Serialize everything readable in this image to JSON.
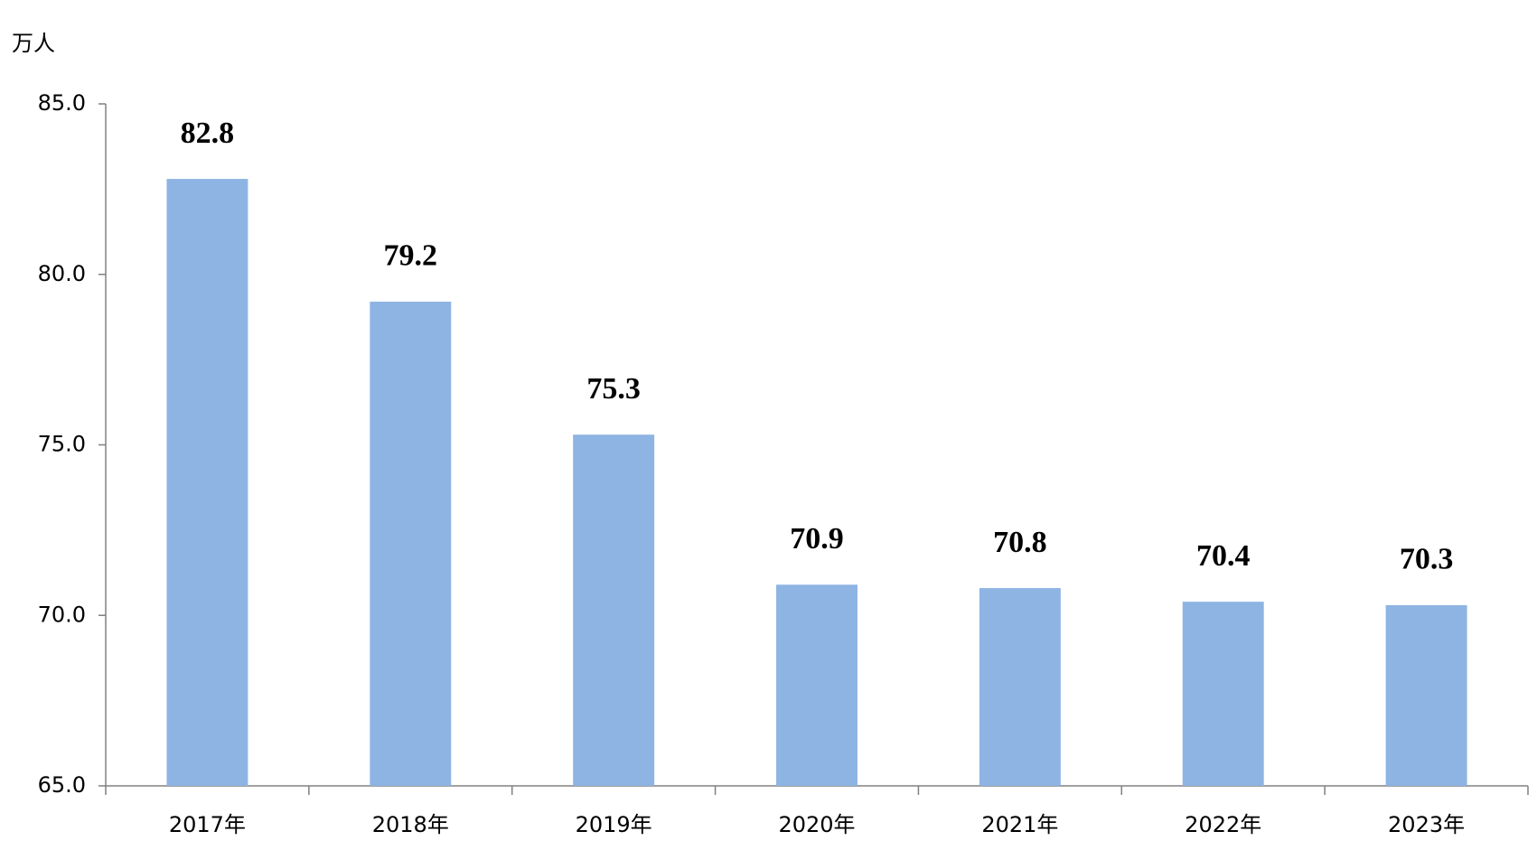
{
  "chart_data": {
    "type": "bar",
    "y_axis_label": "万人",
    "categories": [
      "2017年",
      "2018年",
      "2019年",
      "2020年",
      "2021年",
      "2022年",
      "2023年"
    ],
    "values": [
      82.8,
      79.2,
      75.3,
      70.9,
      70.8,
      70.4,
      70.3
    ],
    "color": "#8eb4e3",
    "ylim": [
      65,
      85
    ],
    "yticks": [
      {
        "value": 65,
        "label": "65.0"
      },
      {
        "value": 70,
        "label": "70.0"
      },
      {
        "value": 75,
        "label": "75.0"
      },
      {
        "value": 80,
        "label": "80.0"
      },
      {
        "value": 85,
        "label": "85.0"
      }
    ],
    "grid": false
  }
}
